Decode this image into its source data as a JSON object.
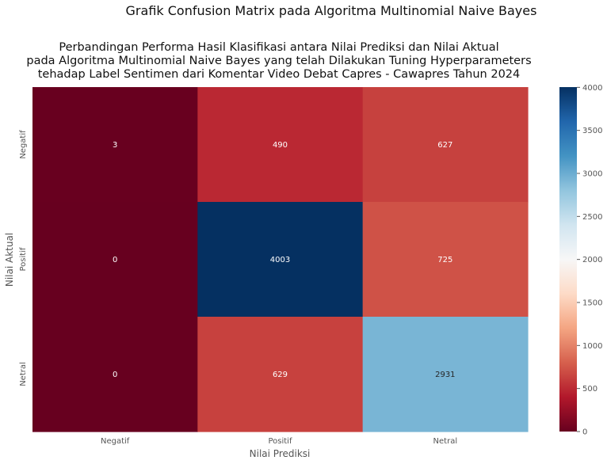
{
  "chart_data": {
    "type": "heatmap",
    "suptitle": "Grafik Confusion Matrix pada Algoritma Multinomial Naive Bayes",
    "title_lines": [
      "Perbandingan Performa Hasil Klasifikasi antara Nilai Prediksi dan Nilai Aktual",
      "pada Algoritma Multinomial Naive Bayes yang telah Dilakukan Tuning Hyperparameters",
      "tehadap Label Sentimen dari Komentar Video Debat Capres -  Cawapres Tahun 2024"
    ],
    "xlabel": "Nilai Prediksi",
    "ylabel": "Nilai Aktual",
    "x_categories": [
      "Negatif",
      "Positif",
      "Netral"
    ],
    "y_categories": [
      "Negatif",
      "Positif",
      "Netral"
    ],
    "values": [
      [
        3,
        490,
        627
      ],
      [
        0,
        4003,
        725
      ],
      [
        0,
        629,
        2931
      ]
    ],
    "colormap": "RdBu",
    "vmin": 0,
    "vmax": 4003,
    "colorbar_ticks": [
      "0",
      "500",
      "1000",
      "1500",
      "2000",
      "2500",
      "3000",
      "3500",
      "4000"
    ],
    "colorbar_tick_values": [
      0,
      500,
      1000,
      1500,
      2000,
      2500,
      3000,
      3500,
      4000
    ]
  }
}
